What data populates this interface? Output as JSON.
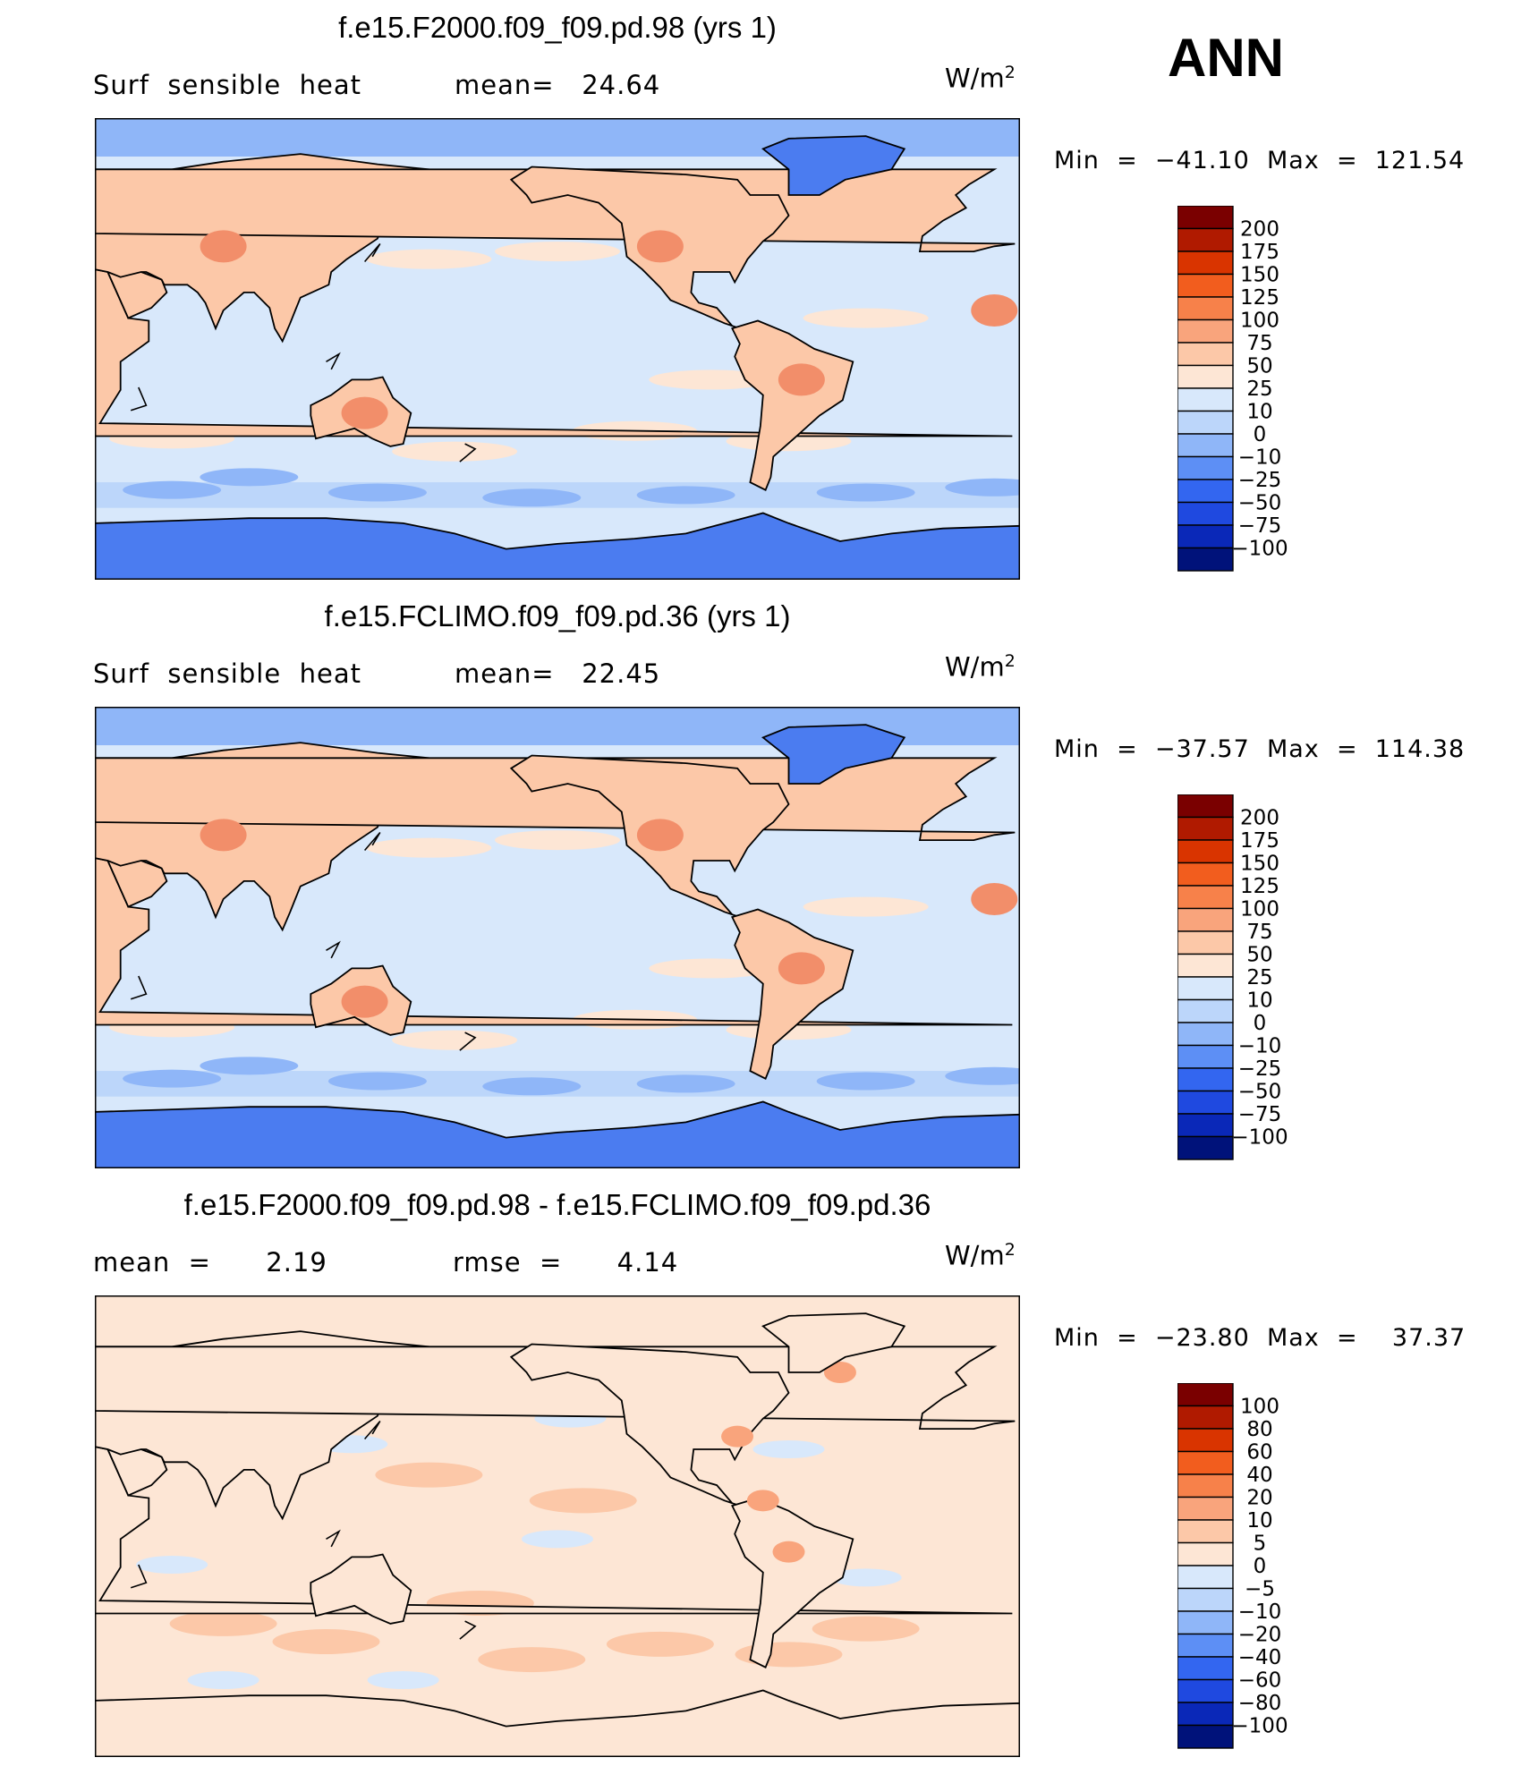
{
  "season": "ANN",
  "units_base": "W/m",
  "units_exp": "2",
  "panels": [
    {
      "title": "f.e15.F2000.f09_f09.pd.98 (yrs 1)",
      "sub_left": "Surf  sensible  heat",
      "sub_right": "mean=   24.64",
      "min_label": "Min  =  −41.10",
      "max_label": "Max  =  121.54",
      "colorbar": [
        "200",
        "175",
        "150",
        "125",
        "100",
        "75",
        "50",
        "25",
        "10",
        "0",
        "−10",
        "−25",
        "−50",
        "−75",
        "−100"
      ]
    },
    {
      "title": "f.e15.FCLIMO.f09_f09.pd.36 (yrs 1)",
      "sub_left": "Surf  sensible  heat",
      "sub_right": "mean=   22.45",
      "min_label": "Min  =  −37.57",
      "max_label": "Max  =  114.38",
      "colorbar": [
        "200",
        "175",
        "150",
        "125",
        "100",
        "75",
        "50",
        "25",
        "10",
        "0",
        "−10",
        "−25",
        "−50",
        "−75",
        "−100"
      ]
    },
    {
      "title": "f.e15.F2000.f09_f09.pd.98 - f.e15.FCLIMO.f09_f09.pd.36",
      "sub_left": "mean  =      2.19",
      "sub_right": "rmse  =      4.14",
      "min_label": "Min  =  −23.80",
      "max_label": "Max  =    37.37",
      "colorbar": [
        "100",
        "80",
        "60",
        "40",
        "20",
        "10",
        "5",
        "0",
        "−5",
        "−10",
        "−20",
        "−40",
        "−60",
        "−80",
        "−100"
      ]
    }
  ],
  "chart_data": [
    {
      "type": "heatmap",
      "title": "f.e15.F2000.f09_f09.pd.98 (yrs 1)",
      "variable": "Surf sensible heat",
      "mean": 24.64,
      "min": -41.1,
      "max": 121.54,
      "levels": [
        -100,
        -75,
        -50,
        -25,
        -10,
        0,
        10,
        25,
        50,
        75,
        100,
        125,
        150,
        175,
        200
      ]
    },
    {
      "type": "heatmap",
      "title": "f.e15.FCLIMO.f09_f09.pd.36 (yrs 1)",
      "variable": "Surf sensible heat",
      "mean": 22.45,
      "min": -37.57,
      "max": 114.38,
      "levels": [
        -100,
        -75,
        -50,
        -25,
        -10,
        0,
        10,
        25,
        50,
        75,
        100,
        125,
        150,
        175,
        200
      ]
    },
    {
      "type": "heatmap",
      "title": "f.e15.F2000.f09_f09.pd.98 - f.e15.FCLIMO.f09_f09.pd.36",
      "mean": 2.19,
      "rmse": 4.14,
      "min": -23.8,
      "max": 37.37,
      "levels": [
        -100,
        -80,
        -60,
        -40,
        -20,
        -10,
        -5,
        0,
        5,
        10,
        20,
        40,
        60,
        80,
        100
      ]
    }
  ],
  "colors": {
    "ramp": [
      "#7a0000",
      "#b01a00",
      "#d93400",
      "#f25d1e",
      "#f7814a",
      "#f9a47c",
      "#fcc8a8",
      "#fde6d5",
      "#d8e8fb",
      "#bcd6fa",
      "#8fb6f8",
      "#5d8ff5",
      "#3366f0",
      "#1f49e0",
      "#0a28b8",
      "#00127a"
    ],
    "ocean_ctrl": "#d8e8fb",
    "ocean_diff": "#fde6d5",
    "ice": "#4b7cf0",
    "arctic": "#8fb6f8",
    "land_warm": "#fcc8a8",
    "land_hot": "#f28e6a"
  }
}
